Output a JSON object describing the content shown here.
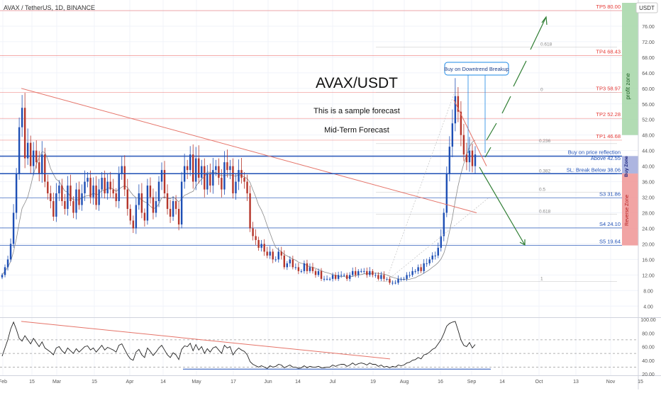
{
  "symbol_header": "AVAX / TetherUS, 1D, BINANCE",
  "currency_badge": "USDT",
  "annotation_text": {
    "title": "AVAX/USDT",
    "subtitle": "This is a sample forecast",
    "subtitle2": "Mid-Term Forecast",
    "callout": "Buy on Downtrend Breakup",
    "profit_zone": "profit zone",
    "buy_zone": "Buy Zone",
    "reverse_zone": "Reverse Zone"
  },
  "levels": [
    {
      "label": "TP5 80.00",
      "value": 80.0,
      "color": "#e53935"
    },
    {
      "label": "TP4 68.43",
      "value": 68.43,
      "color": "#e53935"
    },
    {
      "label": "TP3 58.97",
      "value": 58.97,
      "color": "#e53935"
    },
    {
      "label": "TP2 52.28",
      "value": 52.28,
      "color": "#e53935"
    },
    {
      "label": "TP1 46.68",
      "value": 46.68,
      "color": "#e53935"
    },
    {
      "label": "Buy on price reflection",
      "value": 42.55,
      "color": "#1e4fb5"
    },
    {
      "label": "Above 42.55",
      "value": 41.0,
      "color": "#1e4fb5"
    },
    {
      "label": "SL: Break Below 38.06",
      "value": 38.06,
      "color": "#1e4fb5"
    },
    {
      "label": "S3 31.86",
      "value": 31.86,
      "color": "#1e4fb5"
    },
    {
      "label": "S4 24.10",
      "value": 24.1,
      "color": "#1e4fb5"
    },
    {
      "label": "S5 19.64",
      "value": 19.64,
      "color": "#1e4fb5"
    }
  ],
  "fib_labels": [
    {
      "label": "0",
      "value": 59.0
    },
    {
      "label": "0.618",
      "value": 70.6
    },
    {
      "label": "0.236",
      "value": 45.8
    },
    {
      "label": "0.382",
      "value": 38.0
    },
    {
      "label": "0.5",
      "value": 33.3
    },
    {
      "label": "0.618",
      "value": 27.6
    },
    {
      "label": "1",
      "value": 10.3
    }
  ],
  "chart_data": {
    "type": "candlestick",
    "price_axis": {
      "ticks": [
        "80.00",
        "76.00",
        "72.00",
        "68.00",
        "64.00",
        "60.00",
        "56.00",
        "52.00",
        "48.00",
        "44.00",
        "40.00",
        "36.00",
        "32.00",
        "28.00",
        "24.00",
        "20.00",
        "16.00",
        "12.00",
        "8.00",
        "4.00"
      ],
      "range": [
        1.5,
        82
      ]
    },
    "time_axis": {
      "ticks": [
        "Feb",
        "15",
        "Mar",
        "15",
        "Apr",
        "14",
        "May",
        "17",
        "Jun",
        "14",
        "Jul",
        "19",
        "Aug",
        "16",
        "Sep",
        "14",
        "Oct",
        "13",
        "Nov",
        "15"
      ]
    },
    "series": [
      {
        "approx_closes": [
          12,
          14,
          16,
          20,
          28,
          38,
          50,
          55,
          42,
          46,
          40,
          44,
          41,
          38,
          43,
          36,
          33,
          31,
          27,
          33,
          35,
          31,
          29,
          35,
          31,
          28,
          34,
          30,
          33,
          36,
          37,
          32,
          35,
          30,
          34,
          37,
          33,
          36,
          34,
          33,
          31,
          38,
          40,
          34,
          29,
          26,
          24,
          30,
          33,
          28,
          26,
          35,
          32,
          28,
          31,
          36,
          39,
          33,
          29,
          27,
          31,
          29,
          25,
          36,
          40,
          39,
          43,
          36,
          42,
          37,
          40,
          34,
          38,
          35,
          39,
          40,
          37,
          34,
          41,
          39,
          40,
          33,
          36,
          39,
          37,
          36,
          33,
          24,
          22,
          21,
          19,
          20,
          18,
          17,
          18,
          16,
          16,
          18,
          17,
          14,
          15,
          16,
          14,
          14,
          13,
          13,
          15,
          13,
          14,
          13,
          12,
          13,
          11,
          11,
          11,
          11,
          12,
          11,
          12,
          12,
          12,
          11,
          12,
          13,
          12,
          13,
          13,
          13,
          12,
          13,
          12,
          12,
          11,
          12,
          11,
          11,
          10,
          10,
          10,
          11,
          11,
          11,
          12,
          12,
          13,
          13,
          14,
          13,
          15,
          15,
          16,
          17,
          17,
          19,
          22,
          28,
          38,
          45,
          51,
          58,
          54,
          48,
          43,
          41,
          44,
          40,
          43
        ]
      }
    ],
    "oscillator": {
      "ticks": [
        "100.00",
        "80.00",
        "60.00",
        "40.00",
        "20.00"
      ],
      "range": [
        20,
        100
      ],
      "approx_values": [
        46,
        58,
        70,
        86,
        96,
        85,
        72,
        68,
        76,
        70,
        64,
        72,
        66,
        60,
        67,
        58,
        55,
        52,
        48,
        58,
        60,
        54,
        50,
        58,
        54,
        50,
        57,
        52,
        56,
        60,
        61,
        55,
        58,
        52,
        57,
        62,
        55,
        59,
        57,
        55,
        52,
        62,
        64,
        56,
        48,
        42,
        40,
        52,
        56,
        48,
        44,
        58,
        53,
        47,
        52,
        58,
        62,
        55,
        48,
        44,
        51,
        48,
        41,
        56,
        61,
        60,
        65,
        54,
        63,
        55,
        60,
        50,
        57,
        52,
        58,
        60,
        55,
        50,
        62,
        58,
        60,
        48,
        54,
        58,
        55,
        53,
        48,
        38,
        34,
        32,
        30,
        32,
        30,
        28,
        32,
        30,
        31,
        34,
        33,
        29,
        31,
        33,
        30,
        30,
        28,
        29,
        32,
        29,
        31,
        30,
        30,
        31,
        29,
        29,
        30,
        30,
        33,
        31,
        33,
        34,
        34,
        31,
        33,
        36,
        33,
        35,
        36,
        35,
        33,
        36,
        34,
        34,
        31,
        33,
        30,
        31,
        29,
        31,
        30,
        33,
        32,
        33,
        36,
        37,
        40,
        41,
        44,
        42,
        48,
        49,
        52,
        56,
        58,
        64,
        70,
        79,
        90,
        94,
        96,
        97,
        84,
        70,
        62,
        60,
        66,
        58,
        63
      ],
      "levels": [
        70,
        50,
        30
      ]
    }
  }
}
